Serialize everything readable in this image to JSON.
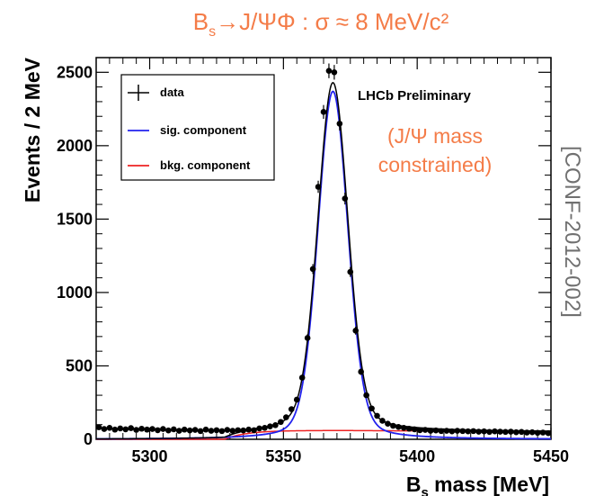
{
  "title": {
    "text_b": "B",
    "text_sub": "s",
    "text_rest": "→J/ΨΦ : σ ≈ 8 MeV/c²"
  },
  "annotations": {
    "experiment": "LHCb Preliminary",
    "note_line1": "(J/Ψ mass",
    "note_line2": "constrained)",
    "reference": "[CONF-2012-002]"
  },
  "colors": {
    "title": "#f47c48",
    "note": "#f47c48",
    "reference": "#707070",
    "data": "#000000",
    "signal": "#2222ee",
    "background": "#ee2222",
    "total_fit": "#000000"
  },
  "chart_data": {
    "type": "line",
    "xlabel_main": "B",
    "xlabel_sub": "s",
    "xlabel_rest": " mass [MeV]",
    "ylabel": "Events / 2 MeV",
    "xlim": [
      5280,
      5450
    ],
    "ylim": [
      0,
      2600
    ],
    "x_ticks": [
      5300,
      5350,
      5400,
      5450
    ],
    "x_tick_labels": [
      "5300",
      "5350",
      "5400",
      "5450"
    ],
    "y_ticks": [
      0,
      500,
      1000,
      1500,
      2000,
      2500
    ],
    "y_tick_labels": [
      "0",
      "500",
      "1000",
      "1500",
      "2000",
      "2500"
    ],
    "grid": false,
    "legend_position": "top-left",
    "legend": [
      {
        "key": "data",
        "label": "data"
      },
      {
        "key": "signal",
        "label": "sig. component"
      },
      {
        "key": "background",
        "label": "bkg. component"
      }
    ],
    "data_points": {
      "x": [
        5281,
        5283,
        5285,
        5287,
        5289,
        5291,
        5293,
        5295,
        5297,
        5299,
        5301,
        5303,
        5305,
        5307,
        5309,
        5311,
        5313,
        5315,
        5317,
        5319,
        5321,
        5323,
        5325,
        5327,
        5329,
        5331,
        5333,
        5335,
        5337,
        5339,
        5341,
        5343,
        5345,
        5347,
        5349,
        5351,
        5353,
        5355,
        5357,
        5359,
        5361,
        5363,
        5365,
        5367,
        5369,
        5371,
        5373,
        5375,
        5377,
        5379,
        5381,
        5383,
        5385,
        5387,
        5389,
        5391,
        5393,
        5395,
        5397,
        5399,
        5401,
        5403,
        5405,
        5407,
        5409,
        5411,
        5413,
        5415,
        5417,
        5419,
        5421,
        5423,
        5425,
        5427,
        5429,
        5431,
        5433,
        5435,
        5437,
        5439,
        5441,
        5443,
        5445,
        5447,
        5449
      ],
      "y": [
        82,
        70,
        78,
        66,
        74,
        68,
        76,
        64,
        72,
        66,
        70,
        62,
        70,
        60,
        68,
        58,
        66,
        60,
        64,
        56,
        66,
        58,
        62,
        56,
        64,
        58,
        62,
        60,
        66,
        62,
        74,
        78,
        88,
        96,
        118,
        150,
        205,
        270,
        420,
        690,
        1160,
        1720,
        2230,
        2510,
        2500,
        2150,
        1640,
        1140,
        740,
        460,
        300,
        210,
        160,
        126,
        106,
        92,
        84,
        78,
        72,
        68,
        62,
        64,
        58,
        60,
        56,
        58,
        54,
        58,
        56,
        54,
        56,
        52,
        54,
        50,
        54,
        52,
        50,
        52,
        48,
        50,
        46,
        48,
        44,
        46,
        42
      ]
    },
    "signal": {
      "peak_position": 5368.5,
      "peak_height": 2370,
      "core_width": 5.6
    },
    "background": {
      "level_at_5328": 0,
      "level_at_5370": 60,
      "level_at_5450": 52
    }
  }
}
